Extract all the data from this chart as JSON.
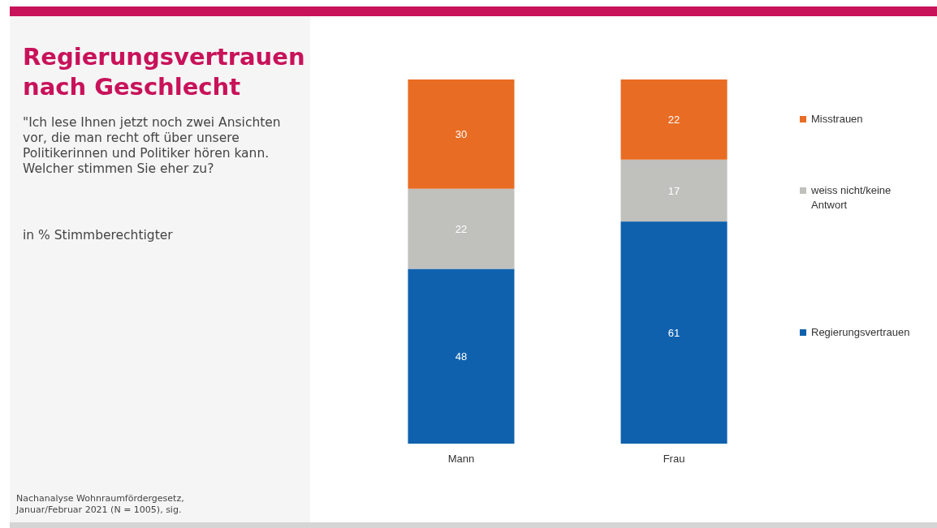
{
  "chart_data": {
    "type": "bar",
    "stacked": true,
    "title": "Regierungsvertrauen nach Geschlecht",
    "subtitle": "\"Ich lese Ihnen jetzt noch zwei Ansichten vor, die man recht oft über unsere Politikerinnen und Politiker hören kann. Welcher stimmen Sie eher zu?",
    "annotations": [
      "in % Stimmberechtigter",
      "Nachanalyse Wohnraumfördergesetz, Januar/Februar 2021 (N = 1005), sig."
    ],
    "categories": [
      "Mann",
      "Frau"
    ],
    "series": [
      {
        "name": "Regierungsvertrauen",
        "color": "#0f61ad",
        "values": [
          48,
          61
        ]
      },
      {
        "name": "weiss nicht/keine Antwort",
        "color": "#c0c0bd",
        "values": [
          22,
          17
        ]
      },
      {
        "name": "Misstrauen",
        "color": "#e86c24",
        "values": [
          30,
          22
        ]
      }
    ],
    "ylim": [
      0,
      100
    ],
    "data_labels": true,
    "legend": "right"
  }
}
